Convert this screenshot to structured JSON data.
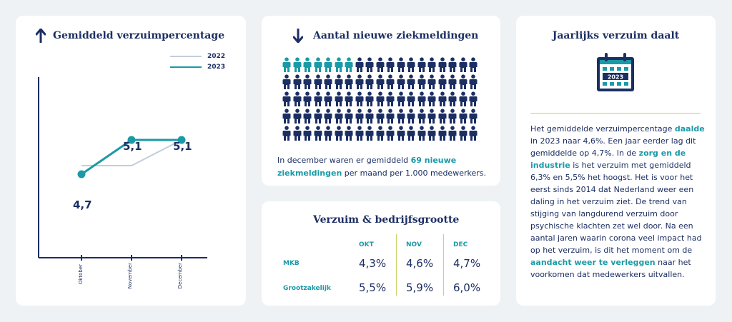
{
  "card1": {
    "title": "Gemiddeld verzuimpercentage",
    "legend": [
      {
        "label": "2022",
        "color": "#c3cedb"
      },
      {
        "label": "2023",
        "color": "#1a9aa6"
      }
    ],
    "chart_data": {
      "type": "line",
      "title": "Gemiddeld verzuimpercentage",
      "categories": [
        "Oktober",
        "November",
        "December"
      ],
      "series": [
        {
          "name": "2022",
          "values": [
            4.8,
            4.8,
            5.1
          ]
        },
        {
          "name": "2023",
          "values": [
            4.7,
            5.1,
            5.1
          ]
        }
      ],
      "data_labels": [
        "4,7",
        "5,1",
        "5,1"
      ],
      "ylim": [
        4.3,
        5.5
      ]
    }
  },
  "card2": {
    "title": "Aantal nieuwe ziekmeldingen",
    "highlighted_count": 7,
    "total_icons": 95,
    "text_before": "In december waren er gemiddeld",
    "text_highlight": "69 nieuwe ziekmeldingen",
    "text_after": "per maand per 1.000 medewerkers."
  },
  "card3": {
    "title": "Verzuim & bedrijfsgrootte",
    "columns": [
      "OKT",
      "NOV",
      "DEC"
    ],
    "rows": [
      {
        "label": "MKB",
        "values": [
          "4,3%",
          "4,6%",
          "4,7%"
        ]
      },
      {
        "label": "Grootzakelijk",
        "values": [
          "5,5%",
          "5,9%",
          "6,0%"
        ]
      }
    ]
  },
  "card4": {
    "title": "Jaarlijks verzuim daalt",
    "calendar_year": "2023",
    "p1": "Het gemiddelde verzuimpercentage",
    "p1_hl": "daalde",
    "p2": "in 2023 naar 4,6%. Een jaar eerder lag dit gemiddelde op 4,7%. In de",
    "p2_hl": "zorg en de industrie",
    "p3": "is het verzuim met gemiddeld 6,3% en 5,5% het hoogst. Het is voor het eerst sinds 2014 dat Nederland weer een daling in het verzuim ziet. De trend van stijging van langdurend verzuim door psychische klachten zet wel door. Na een aantal jaren waarin corona veel impact had op het verzuim, is dit het moment om de",
    "p3_hl": "aandacht weer te verleggen",
    "p4": "naar het voorkomen dat medewerkers uitvallen."
  }
}
